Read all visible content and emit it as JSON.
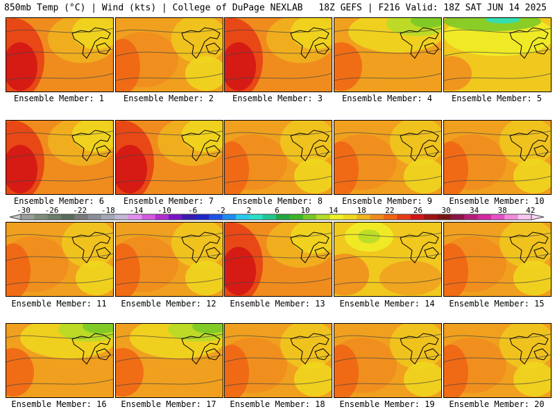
{
  "header": {
    "left": "850mb Temp (°C) | Wind (kts) | College of DuPage NEXLAB",
    "right": "18Z GEFS | F216 Valid: 18Z SAT JUN 14 2025"
  },
  "colors": {
    "bar": [
      "#9c9c9c",
      "#7e8c7c",
      "#6b7d6b",
      "#5a6b5a",
      "#7a7a7a",
      "#8a8f9a",
      "#a3a9b8",
      "#c6b7d6",
      "#e38ff0",
      "#d25be0",
      "#b22bd0",
      "#7a14c8",
      "#3b1ab0",
      "#1e28c8",
      "#1e52e6",
      "#1e8cf0",
      "#28c8f0",
      "#28e0c8",
      "#20c890",
      "#20a840",
      "#3cb428",
      "#78c828",
      "#b4dc28",
      "#f0f028",
      "#f0d81e",
      "#f0b41e",
      "#f08c1e",
      "#f06414",
      "#e63c14",
      "#d21414",
      "#a01414",
      "#781414",
      "#8c1446",
      "#b41e78",
      "#d228a0",
      "#e650c8",
      "#f08cdc",
      "#f8c8f0"
    ]
  },
  "colorbar": {
    "labels": [
      "-30",
      "-26",
      "-22",
      "-18",
      "-14",
      "-10",
      "-6",
      "-2",
      "2",
      "6",
      "10",
      "14",
      "18",
      "22",
      "26",
      "30",
      "34",
      "38",
      "42"
    ]
  },
  "members": [
    {
      "label": "Ensemble Member: 1",
      "style": "hot-west"
    },
    {
      "label": "Ensemble Member: 2",
      "style": "orange"
    },
    {
      "label": "Ensemble Member: 3",
      "style": "hot-west"
    },
    {
      "label": "Ensemble Member: 4",
      "style": "cool-north"
    },
    {
      "label": "Ensemble Member: 5",
      "style": "yellow-teal"
    },
    {
      "label": "Ensemble Member: 6",
      "style": "hot-west"
    },
    {
      "label": "Ensemble Member: 7",
      "style": "hot-west"
    },
    {
      "label": "Ensemble Member: 8",
      "style": "orange"
    },
    {
      "label": "Ensemble Member: 9",
      "style": "orange"
    },
    {
      "label": "Ensemble Member: 10",
      "style": "orange"
    },
    {
      "label": "Ensemble Member: 11",
      "style": "orange"
    },
    {
      "label": "Ensemble Member: 12",
      "style": "orange"
    },
    {
      "label": "Ensemble Member: 13",
      "style": "hot-west"
    },
    {
      "label": "Ensemble Member: 14",
      "style": "yellow"
    },
    {
      "label": "Ensemble Member: 15",
      "style": "orange"
    },
    {
      "label": "Ensemble Member: 16",
      "style": "cool-north"
    },
    {
      "label": "Ensemble Member: 17",
      "style": "cool-north"
    },
    {
      "label": "Ensemble Member: 18",
      "style": "orange"
    },
    {
      "label": "Ensemble Member: 19",
      "style": "orange"
    },
    {
      "label": "Ensemble Member: 20",
      "style": "orange"
    }
  ]
}
